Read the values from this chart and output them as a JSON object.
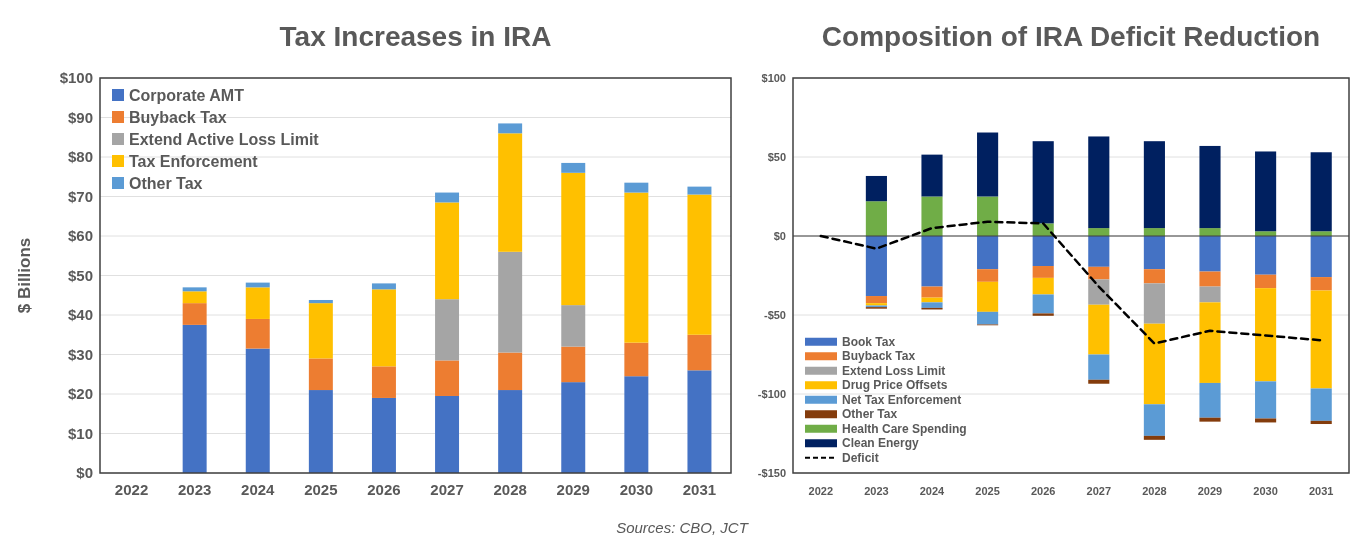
{
  "chart_data": [
    {
      "type": "bar",
      "title": "Tax Increases in IRA",
      "ylabel": "$ Billions",
      "stacked": true,
      "grid": "y",
      "legend": "top left",
      "categories": [
        "2022",
        "2023",
        "2024",
        "2025",
        "2026",
        "2027",
        "2028",
        "2029",
        "2030",
        "2031"
      ],
      "ylim": [
        0,
        100
      ],
      "yticks": [
        {
          "value": 0,
          "label": "$0"
        },
        {
          "value": 10,
          "label": "$10"
        },
        {
          "value": 20,
          "label": "$20"
        },
        {
          "value": 30,
          "label": "$30"
        },
        {
          "value": 40,
          "label": "$40"
        },
        {
          "value": 50,
          "label": "$50"
        },
        {
          "value": 60,
          "label": "$60"
        },
        {
          "value": 70,
          "label": "$70"
        },
        {
          "value": 80,
          "label": "$80"
        },
        {
          "value": 90,
          "label": "$90"
        },
        {
          "value": 100,
          "label": "$100"
        }
      ],
      "series": [
        {
          "name": "Corporate AMT",
          "color": "#4472c4",
          "values": [
            null,
            37.5,
            31.5,
            21,
            19,
            19.5,
            21,
            23,
            24.5,
            26
          ]
        },
        {
          "name": "Buyback Tax",
          "color": "#ed7d31",
          "values": [
            null,
            5.5,
            7.5,
            8,
            8,
            9,
            9.5,
            9,
            8.5,
            9
          ]
        },
        {
          "name": "Extend Active Loss Limit",
          "color": "#a5a5a5",
          "values": [
            null,
            0,
            0,
            0,
            0,
            15.5,
            25.5,
            10.5,
            0,
            0
          ]
        },
        {
          "name": "Tax Enforcement",
          "color": "#ffc000",
          "values": [
            null,
            3,
            8,
            14,
            19.5,
            24.5,
            30,
            33.5,
            38,
            35.5
          ]
        },
        {
          "name": "Other Tax",
          "color": "#5b9bd5",
          "values": [
            null,
            1,
            1.2,
            0.8,
            1.5,
            2.5,
            2.5,
            2.5,
            2.5,
            2
          ]
        }
      ],
      "annotations": [
        "Sources: CBO, JCT"
      ]
    },
    {
      "type": "bar",
      "title": "Composition of IRA Deficit Reduction",
      "stacked": true,
      "grid": "y",
      "legend": "bottom left",
      "categories": [
        "2022",
        "2023",
        "2024",
        "2025",
        "2026",
        "2027",
        "2028",
        "2029",
        "2030",
        "2031"
      ],
      "ylim": [
        -150,
        100
      ],
      "yticks": [
        {
          "value": -150,
          "label": "-$150"
        },
        {
          "value": -100,
          "label": "-$100"
        },
        {
          "value": -50,
          "label": "-$50"
        },
        {
          "value": 0,
          "label": "$0"
        },
        {
          "value": 50,
          "label": "$50"
        },
        {
          "value": 100,
          "label": "$100"
        }
      ],
      "series": [
        {
          "name": "Book Tax",
          "color": "#4472c4",
          "values": [
            null,
            -38,
            -32,
            -21,
            -19,
            -19.5,
            -21,
            -22.5,
            -24.5,
            -26
          ]
        },
        {
          "name": "Buyback Tax",
          "color": "#ed7d31",
          "values": [
            null,
            -4.5,
            -7,
            -8,
            -7.5,
            -8,
            -9,
            -9.5,
            -8.5,
            -8.5
          ]
        },
        {
          "name": "Extend Loss Limit",
          "color": "#a5a5a5",
          "values": [
            null,
            0,
            0,
            0,
            0,
            -16,
            -25.5,
            -10,
            0,
            0
          ]
        },
        {
          "name": "Drug Price Offsets",
          "color": "#ffc000",
          "values": [
            null,
            -1.5,
            -3,
            -19,
            -10.5,
            -31.5,
            -51,
            -51,
            -59,
            -62
          ]
        },
        {
          "name": "Net Tax Enforcement",
          "color": "#5b9bd5",
          "values": [
            null,
            -1,
            -3.5,
            -8,
            -12,
            -16,
            -20,
            -22,
            -23.5,
            -20.5
          ]
        },
        {
          "name": "Other Tax",
          "color": "#843c0c",
          "values": [
            null,
            -1,
            -1,
            -0.5,
            -1.5,
            -2.5,
            -2.5,
            -2.5,
            -2.5,
            -2
          ]
        },
        {
          "name": "Health Care Spending",
          "color": "#70ad47",
          "values": [
            null,
            22,
            25,
            25,
            8,
            5,
            5,
            5,
            3,
            3
          ]
        },
        {
          "name": "Clean Energy",
          "color": "#002060",
          "values": [
            null,
            16,
            26.5,
            40.5,
            52,
            58,
            55,
            52,
            50.5,
            50
          ]
        },
        {
          "name": "Deficit",
          "type": "line",
          "color": "#000000",
          "line_style": "dashed",
          "values": [
            0,
            -8,
            5,
            9,
            8,
            -32,
            -68,
            -60,
            -63,
            -66
          ]
        }
      ]
    }
  ]
}
